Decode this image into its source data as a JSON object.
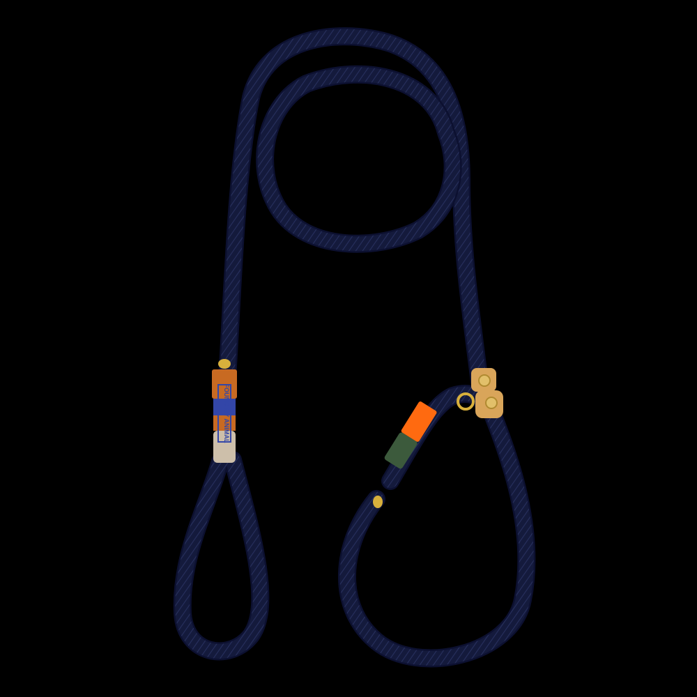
{
  "photo": {
    "subject": "rope-slip-lead",
    "background_color": "#000000",
    "rope_color": "#141a3c",
    "rope_highlight_color": "#28305e",
    "leather_tag_color": "#c86a22",
    "leather_patch_color": "#d9a55a",
    "wrap_colors": {
      "blue": "#3346a8",
      "beige": "#cdbfaa",
      "green": "#3c5a3c",
      "orange": "#ff6a10"
    },
    "hardware_color": "#d8b03c",
    "tag_text": "FOUND MY ANIMAL"
  }
}
